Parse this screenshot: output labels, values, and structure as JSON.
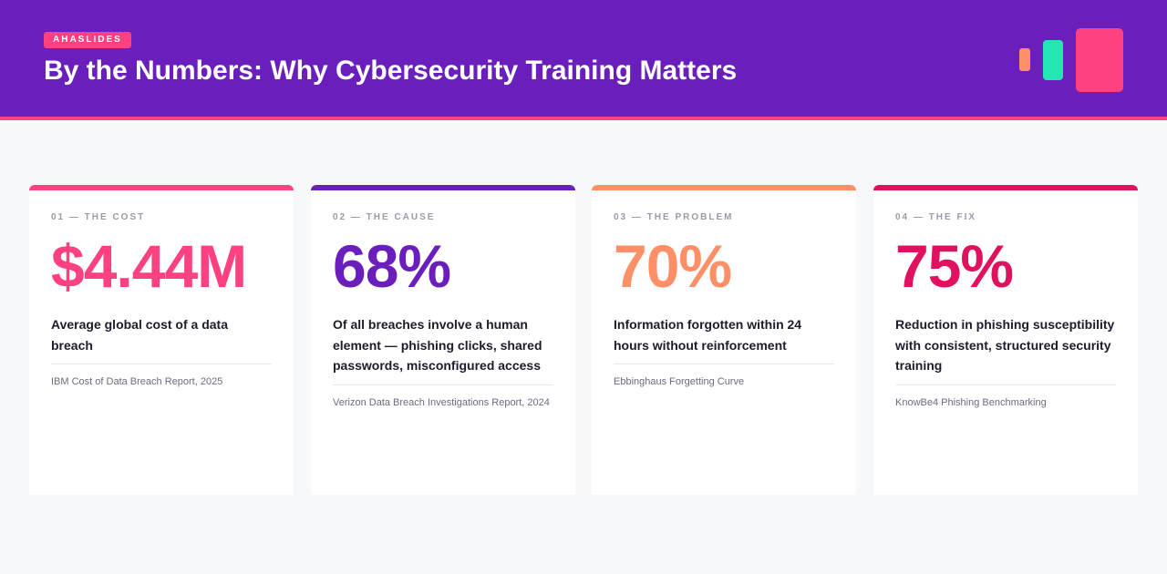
{
  "header": {
    "brand": "AHASLIDES",
    "title": "By the Numbers: Why Cybersecurity Training Matters"
  },
  "colors": {
    "header_bg": "#6a1fbd",
    "pink": "#ff4081",
    "purple": "#6a1fbd",
    "orange": "#ff8f66",
    "crimson": "#e0115f",
    "mint": "#22e6b4"
  },
  "cards": [
    {
      "kicker": "01 — THE COST",
      "stat": "$4.44M",
      "description": "Average global cost of a data breach",
      "source": "IBM Cost of Data Breach Report, 2025",
      "accent": "#ff4081"
    },
    {
      "kicker": "02 — THE CAUSE",
      "stat": "68%",
      "description": "Of all breaches involve a human element — phishing clicks, shared passwords, misconfigured access",
      "source": "Verizon Data Breach Investigations Report, 2024",
      "accent": "#6a1fbd"
    },
    {
      "kicker": "03 — THE PROBLEM",
      "stat": "70%",
      "description": "Information forgotten within 24 hours without reinforcement",
      "source": "Ebbinghaus Forgetting Curve",
      "accent": "#ff8f66"
    },
    {
      "kicker": "04 — THE FIX",
      "stat": "75%",
      "description": "Reduction in phishing susceptibility with consistent, structured security training",
      "source": "KnowBe4 Phishing Benchmarking",
      "accent": "#e0115f"
    }
  ]
}
